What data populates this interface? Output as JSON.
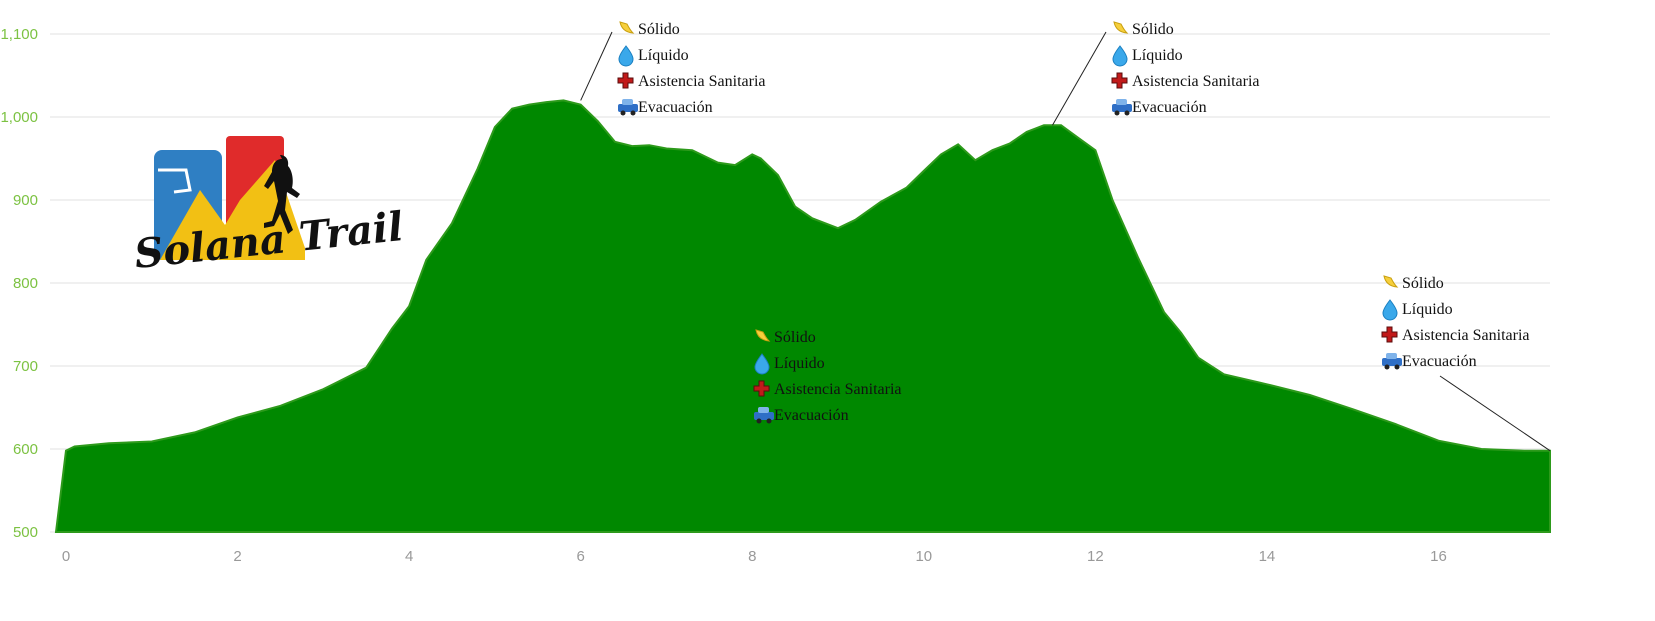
{
  "chart_data": {
    "type": "area",
    "title": "",
    "xlabel": "",
    "ylabel": "",
    "xlim": [
      0,
      17.3
    ],
    "ylim": [
      500,
      1100
    ],
    "x_ticks": [
      0,
      2,
      4,
      6,
      8,
      10,
      12,
      14,
      16
    ],
    "x_tick_labels": [
      "0",
      "2",
      "4",
      "6",
      "8",
      "10",
      "12",
      "14",
      "16"
    ],
    "y_ticks": [
      500,
      600,
      700,
      800,
      900,
      1000,
      1100
    ],
    "y_tick_labels": [
      "500",
      "600",
      "700",
      "800",
      "900",
      "1,000",
      "1,100"
    ],
    "grid": true,
    "fill_color": "#008800",
    "series": [
      {
        "x": [
          0,
          0.1,
          0.5,
          1.0,
          1.5,
          2.0,
          2.5,
          3.0,
          3.5,
          3.8,
          4.0,
          4.2,
          4.5,
          4.8,
          5.0,
          5.2,
          5.4,
          5.6,
          5.8,
          6.0,
          6.2,
          6.4,
          6.6,
          6.8,
          7.0,
          7.3,
          7.6,
          7.8,
          8.0,
          8.1,
          8.3,
          8.5,
          8.7,
          9.0,
          9.2,
          9.5,
          9.8,
          10.0,
          10.2,
          10.4,
          10.6,
          10.8,
          11.0,
          11.2,
          11.4,
          11.6,
          11.8,
          12.0,
          12.2,
          12.5,
          12.8,
          13.0,
          13.2,
          13.5,
          14.0,
          14.5,
          15.0,
          15.5,
          16.0,
          16.5,
          17.0,
          17.3
        ],
        "y": [
          598,
          603,
          607,
          609,
          620,
          638,
          652,
          672,
          698,
          745,
          772,
          828,
          872,
          938,
          988,
          1010,
          1015,
          1018,
          1020,
          1015,
          995,
          970,
          965,
          966,
          962,
          960,
          945,
          942,
          955,
          950,
          930,
          892,
          878,
          866,
          876,
          898,
          915,
          935,
          955,
          967,
          948,
          960,
          968,
          982,
          990,
          990,
          975,
          960,
          900,
          830,
          765,
          740,
          710,
          690,
          678,
          665,
          648,
          630,
          610,
          600,
          598,
          598
        ]
      }
    ],
    "annotations": [
      {
        "x": 6.0,
        "y": 1020,
        "items": [
          "Sólido",
          "Líquido",
          "Asistencia Sanitaria",
          "Evacuación"
        ]
      },
      {
        "x": 11.5,
        "y": 990,
        "items": [
          "Sólido",
          "Líquido",
          "Asistencia Sanitaria",
          "Evacuación"
        ]
      },
      {
        "x": 8.5,
        "y": 600,
        "items": [
          "Sólido",
          "Líquido",
          "Asistencia Sanitaria",
          "Evacuación"
        ]
      },
      {
        "x": 17.3,
        "y": 598,
        "items": [
          "Sólido",
          "Líquido",
          "Asistencia Sanitaria",
          "Evacuación"
        ]
      }
    ],
    "annotation_icons": [
      "banana-icon",
      "water-drop-icon",
      "red-cross-icon",
      "car-icon"
    ]
  },
  "logo": {
    "text": "Solana Trail"
  }
}
